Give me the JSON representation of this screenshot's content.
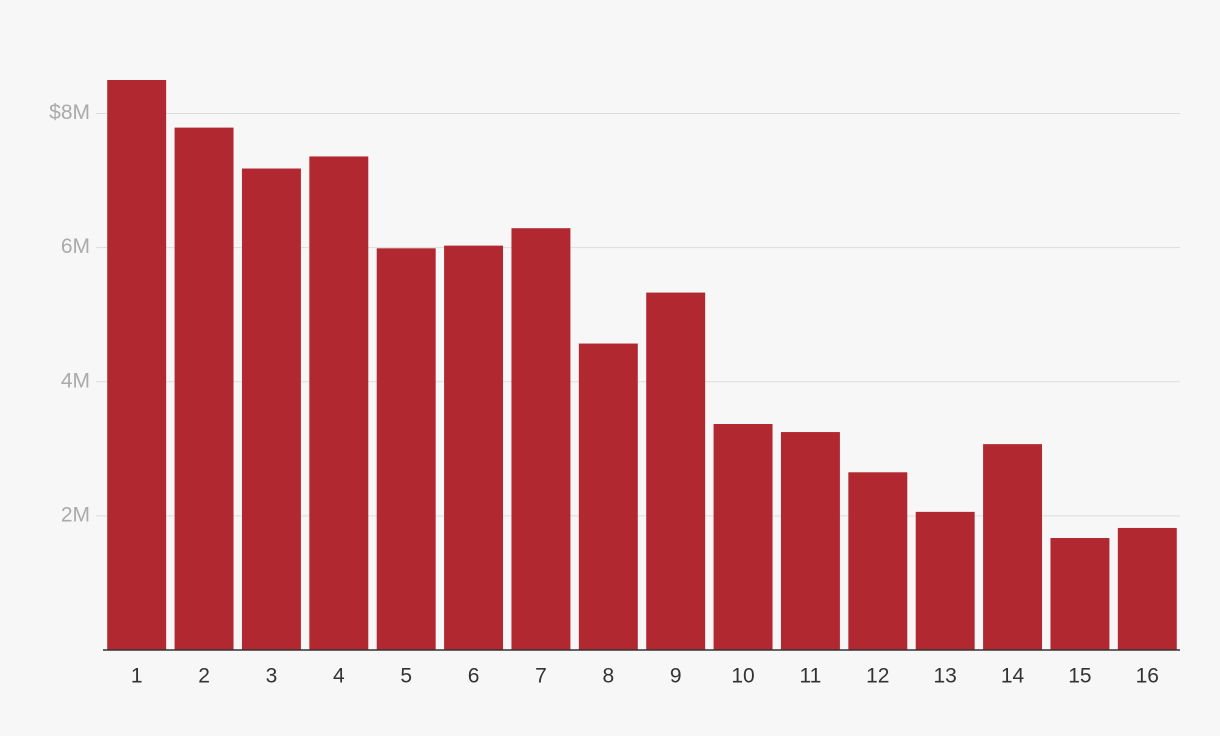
{
  "chart_data": {
    "type": "bar",
    "categories": [
      "1",
      "2",
      "3",
      "4",
      "5",
      "6",
      "7",
      "8",
      "9",
      "10",
      "11",
      "12",
      "13",
      "14",
      "15",
      "16"
    ],
    "values": [
      8500000,
      7790000,
      7180000,
      7360000,
      5990000,
      6030000,
      6290000,
      4570000,
      5330000,
      3370000,
      3250000,
      2650000,
      2060000,
      3070000,
      1670000,
      1820000
    ],
    "color": "#b22830",
    "ylim": [
      0,
      8500000
    ],
    "yticks": [
      {
        "value": 2000000,
        "label": "2M"
      },
      {
        "value": 4000000,
        "label": "4M"
      },
      {
        "value": 6000000,
        "label": "6M"
      },
      {
        "value": 8000000,
        "label": "$8M"
      }
    ],
    "grid": true
  }
}
